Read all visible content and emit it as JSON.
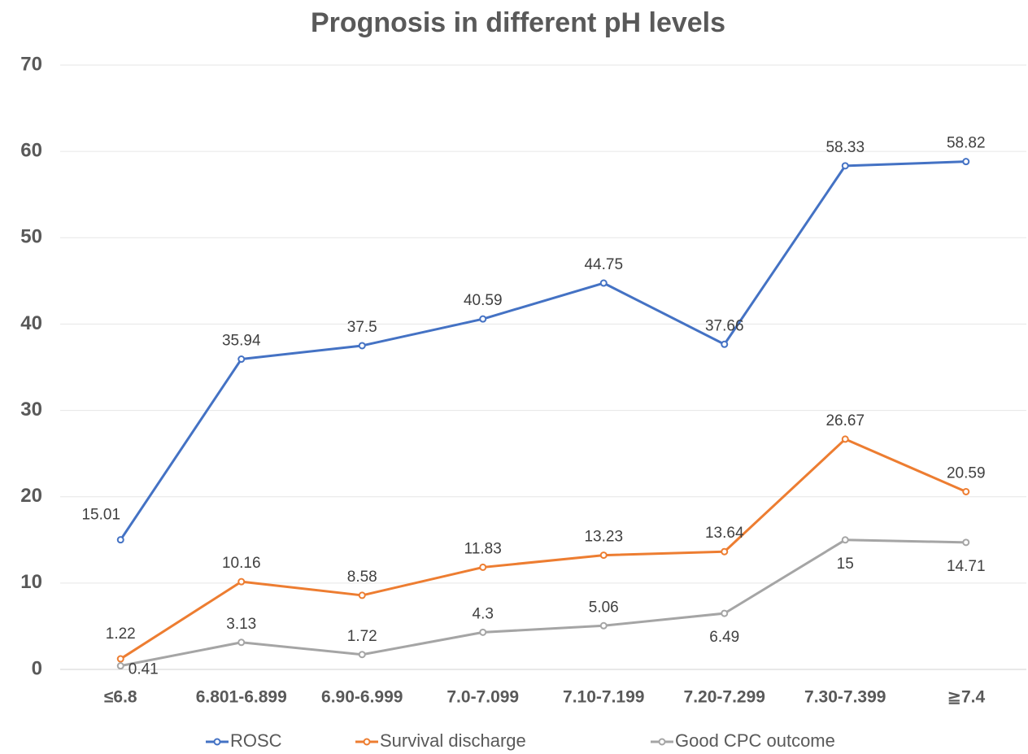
{
  "chart_data": {
    "type": "line",
    "title": "Prognosis in different pH levels",
    "categories": [
      "≤6.8",
      "6.801-6.899",
      "6.90-6.999",
      "7.0-7.099",
      "7.10-7.199",
      "7.20-7.299",
      "7.30-7.399",
      "≧7.4"
    ],
    "series": [
      {
        "name": "ROSC",
        "color": "#4472c4",
        "values": [
          15.01,
          35.94,
          37.5,
          40.59,
          44.75,
          37.66,
          58.33,
          58.82
        ]
      },
      {
        "name": "Survival discharge",
        "color": "#ed7d31",
        "values": [
          1.22,
          10.16,
          8.58,
          11.83,
          13.23,
          13.64,
          26.67,
          20.59
        ]
      },
      {
        "name": "Good CPC outcome",
        "color": "#a5a5a5",
        "values": [
          0.41,
          3.13,
          1.72,
          4.3,
          5.06,
          6.49,
          15,
          14.71
        ]
      }
    ],
    "ylim": [
      0,
      70
    ],
    "yticks": [
      0,
      10,
      20,
      30,
      40,
      50,
      60,
      70
    ],
    "grid": true,
    "legend": "bottom"
  }
}
